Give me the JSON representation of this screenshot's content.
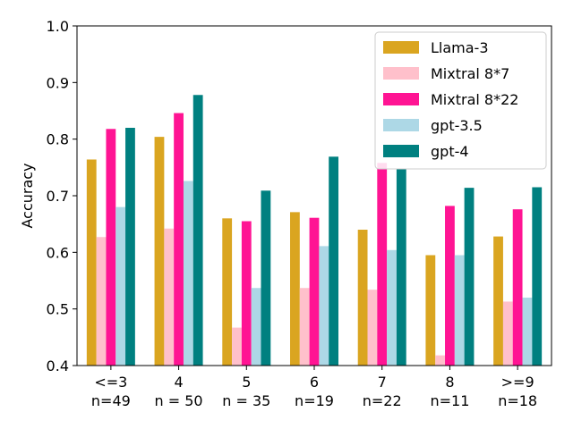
{
  "chart_data": {
    "type": "bar",
    "title": "",
    "xlabel": "",
    "ylabel": "Accuracy",
    "ylim": [
      0.4,
      1.0
    ],
    "yticks": [
      "0.4",
      "0.5",
      "0.6",
      "0.7",
      "0.8",
      "0.9",
      "1.0"
    ],
    "grid": false,
    "legend_position": "top-right",
    "categories": [
      {
        "label": "<=3",
        "sub": "n=49"
      },
      {
        "label": "4",
        "sub": "n = 50"
      },
      {
        "label": "5",
        "sub": "n = 35"
      },
      {
        "label": "6",
        "sub": "n=19"
      },
      {
        "label": "7",
        "sub": "n=22"
      },
      {
        "label": "8",
        "sub": "n=11"
      },
      {
        "label": ">=9",
        "sub": "n=18"
      }
    ],
    "series": [
      {
        "name": "Llama-3",
        "color": "#DAA520",
        "values": [
          0.764,
          0.804,
          0.66,
          0.671,
          0.64,
          0.595,
          0.628
        ]
      },
      {
        "name": "Mixtral 8*7",
        "color": "#FFC0CB",
        "values": [
          0.627,
          0.642,
          0.467,
          0.537,
          0.534,
          0.418,
          0.513
        ]
      },
      {
        "name": "Mixtral 8*22",
        "color": "#FF1493",
        "values": [
          0.818,
          0.846,
          0.655,
          0.661,
          0.758,
          0.682,
          0.676
        ]
      },
      {
        "name": "gpt-3.5",
        "color": "#ADD8E6",
        "values": [
          0.68,
          0.726,
          0.537,
          0.611,
          0.604,
          0.595,
          0.52
        ]
      },
      {
        "name": "gpt-4",
        "color": "#008080",
        "values": [
          0.82,
          0.878,
          0.709,
          0.769,
          0.748,
          0.714,
          0.715
        ]
      }
    ]
  }
}
